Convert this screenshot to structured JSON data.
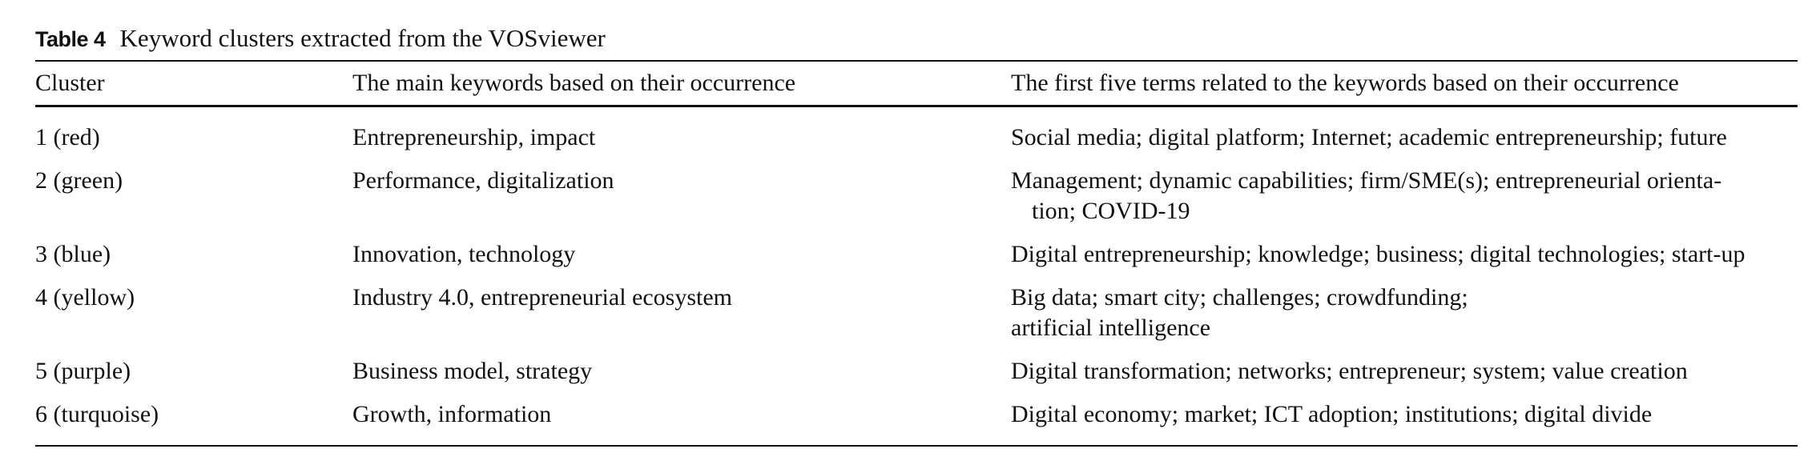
{
  "table": {
    "label": "Table 4",
    "title": "Keyword clusters extracted from the VOSviewer",
    "headers": [
      "Cluster",
      "The main keywords based on their occurrence",
      "The first five terms related to the keywords based on their occurrence"
    ],
    "rows": [
      {
        "cluster": "1 (red)",
        "keywords": "Entrepreneurship, impact",
        "terms_line1": "Social media; digital platform; Internet; academic entrepreneurship; future",
        "terms_line2": ""
      },
      {
        "cluster": "2 (green)",
        "keywords": "Performance, digitalization",
        "terms_line1": "Management; dynamic capabilities; firm/SME(s); entrepreneurial orienta-",
        "terms_line2": "tion; COVID-19"
      },
      {
        "cluster": "3 (blue)",
        "keywords": "Innovation, technology",
        "terms_line1": "Digital entrepreneurship; knowledge; business; digital technologies; start-up",
        "terms_line2": ""
      },
      {
        "cluster": "4 (yellow)",
        "keywords": "Industry 4.0, entrepreneurial ecosystem",
        "terms_line1": "Big data; smart city; challenges; crowdfunding;",
        "terms_line2": "artificial intelligence"
      },
      {
        "cluster": "5 (purple)",
        "keywords": "Business model, strategy",
        "terms_line1": "Digital transformation; networks; entrepreneur; system; value creation",
        "terms_line2": ""
      },
      {
        "cluster": "6 (turquoise)",
        "keywords": "Growth, information",
        "terms_line1": "Digital economy; market; ICT adoption; institutions; digital divide",
        "terms_line2": ""
      }
    ]
  }
}
